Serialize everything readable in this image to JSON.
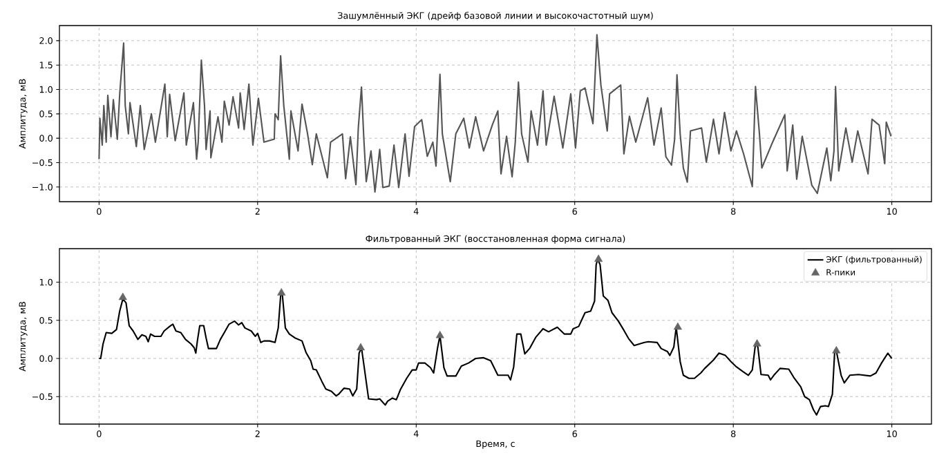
{
  "chart_data": [
    {
      "type": "line",
      "title": "Зашумлённый ЭКГ (дрейф базовой линии и высокочастотный шум)",
      "ylabel": "Амплитуда, мВ",
      "xlim": [
        -0.5,
        10.5
      ],
      "ylim": [
        -1.3,
        2.31
      ],
      "xticks": [
        0,
        2,
        4,
        6,
        8,
        10
      ],
      "yticks": [
        {
          "value": -1.0,
          "label": "−1.0"
        },
        {
          "value": -0.5,
          "label": "−0.5"
        },
        {
          "value": 0.0,
          "label": "0.0"
        },
        {
          "value": 0.5,
          "label": "0.5"
        },
        {
          "value": 1.0,
          "label": "1.0"
        },
        {
          "value": 1.5,
          "label": "1.5"
        },
        {
          "value": 2.0,
          "label": "2.0"
        }
      ],
      "grid": true,
      "line_style": "solid",
      "x": [
        0,
        0.01,
        0.04,
        0.06,
        0.09,
        0.11,
        0.15,
        0.18,
        0.23,
        0.26,
        0.31,
        0.33,
        0.37,
        0.39,
        0.47,
        0.52,
        0.57,
        0.66,
        0.71,
        0.83,
        0.86,
        0.89,
        0.96,
        1.07,
        1.1,
        1.19,
        1.23,
        1.25,
        1.29,
        1.33,
        1.35,
        1.4,
        1.41,
        1.5,
        1.55,
        1.58,
        1.64,
        1.69,
        1.76,
        1.78,
        1.83,
        1.89,
        1.94,
        2.01,
        2.08,
        2.21,
        2.22,
        2.26,
        2.29,
        2.33,
        2.4,
        2.42,
        2.51,
        2.56,
        2.63,
        2.69,
        2.74,
        2.88,
        2.92,
        3.07,
        3.11,
        3.17,
        3.24,
        3.27,
        3.31,
        3.34,
        3.37,
        3.43,
        3.48,
        3.54,
        3.58,
        3.66,
        3.72,
        3.78,
        3.86,
        3.91,
        3.98,
        4.07,
        4.14,
        4.21,
        4.25,
        4.3,
        4.33,
        4.43,
        4.5,
        4.6,
        4.67,
        4.75,
        4.85,
        4.96,
        5.03,
        5.07,
        5.14,
        5.21,
        5.25,
        5.29,
        5.33,
        5.41,
        5.45,
        5.53,
        5.6,
        5.64,
        5.74,
        5.85,
        5.95,
        6.01,
        6.07,
        6.13,
        6.23,
        6.28,
        6.33,
        6.41,
        6.44,
        6.58,
        6.62,
        6.69,
        6.77,
        6.92,
        7.0,
        7.09,
        7.15,
        7.22,
        7.26,
        7.29,
        7.33,
        7.37,
        7.42,
        7.46,
        7.6,
        7.66,
        7.75,
        7.82,
        7.89,
        7.97,
        8.04,
        8.13,
        8.24,
        8.28,
        8.33,
        8.36,
        8.48,
        8.65,
        8.68,
        8.75,
        8.8,
        8.87,
        8.99,
        9.06,
        9.18,
        9.23,
        9.27,
        9.29,
        9.33,
        9.42,
        9.5,
        9.57,
        9.7,
        9.75,
        9.84,
        9.91,
        9.93,
        9.99
      ],
      "series": [
        {
          "color": "#555555",
          "values": [
            -0.43,
            0.41,
            -0.14,
            0.67,
            -0.08,
            0.88,
            0.03,
            0.79,
            -0.02,
            0.9,
            1.95,
            0.67,
            0.09,
            0.73,
            -0.17,
            0.67,
            -0.23,
            0.5,
            -0.08,
            1.11,
            0.03,
            0.9,
            -0.05,
            0.93,
            -0.14,
            0.73,
            -0.43,
            -0.08,
            1.6,
            0.67,
            -0.23,
            0.56,
            -0.4,
            0.44,
            -0.08,
            0.76,
            0.27,
            0.85,
            0.21,
            0.93,
            0.18,
            1.11,
            -0.14,
            0.82,
            -0.08,
            -0.02,
            0.5,
            0.38,
            1.69,
            0.67,
            -0.43,
            0.56,
            -0.26,
            0.7,
            0.09,
            -0.54,
            0.09,
            -0.81,
            -0.08,
            0.09,
            -0.83,
            0.03,
            -0.95,
            0.21,
            1.05,
            -0.02,
            -0.89,
            -0.26,
            -1.1,
            -0.23,
            -1.01,
            -0.98,
            -0.14,
            -1.01,
            0.09,
            -0.78,
            0.24,
            0.38,
            -0.37,
            -0.08,
            -0.57,
            1.31,
            0.09,
            -0.89,
            0.09,
            0.41,
            -0.2,
            0.44,
            -0.26,
            0.27,
            0.56,
            -0.73,
            0.04,
            -0.79,
            -0.08,
            1.15,
            0.09,
            -0.49,
            0.56,
            -0.14,
            0.97,
            -0.14,
            0.86,
            -0.2,
            0.91,
            -0.2,
            0.97,
            1.03,
            0.3,
            2.12,
            1.09,
            0.15,
            0.91,
            1.09,
            -0.32,
            0.45,
            -0.08,
            0.83,
            -0.14,
            0.62,
            -0.38,
            -0.55,
            -0.02,
            1.3,
            0.09,
            -0.61,
            -0.9,
            0.15,
            0.21,
            -0.49,
            0.39,
            -0.32,
            0.53,
            -0.26,
            0.15,
            -0.32,
            -0.99,
            1.06,
            0.09,
            -0.61,
            -0.14,
            0.48,
            -0.67,
            0.27,
            -0.84,
            0.04,
            -0.96,
            -1.13,
            -0.2,
            -0.87,
            -0.26,
            1.06,
            -0.67,
            0.21,
            -0.49,
            0.15,
            -0.73,
            0.39,
            0.27,
            -0.52,
            0.33,
            0.04
          ]
        }
      ]
    },
    {
      "type": "line",
      "title": "Фильтрованный ЭКГ (восстановленная форма сигнала)",
      "ylabel": "Амплитуда, мВ",
      "xlabel": "Время, с",
      "xlim": [
        -0.5,
        10.5
      ],
      "ylim": [
        -0.86,
        1.44
      ],
      "xticks": [
        0,
        2,
        4,
        6,
        8,
        10
      ],
      "yticks": [
        {
          "value": -0.5,
          "label": "−0.5"
        },
        {
          "value": 0.0,
          "label": "0.0"
        },
        {
          "value": 0.5,
          "label": "0.5"
        },
        {
          "value": 1.0,
          "label": "1.0"
        }
      ],
      "grid": true,
      "legend": "top right",
      "line_style": "solid",
      "x": [
        0,
        0.02,
        0.05,
        0.09,
        0.16,
        0.22,
        0.26,
        0.3,
        0.34,
        0.38,
        0.43,
        0.49,
        0.54,
        0.59,
        0.62,
        0.65,
        0.7,
        0.78,
        0.82,
        0.89,
        0.93,
        0.97,
        1.03,
        1.09,
        1.16,
        1.2,
        1.22,
        1.24,
        1.27,
        1.32,
        1.35,
        1.38,
        1.48,
        1.53,
        1.58,
        1.64,
        1.71,
        1.76,
        1.8,
        1.84,
        1.92,
        1.97,
        2.0,
        2.04,
        2.08,
        2.15,
        2.22,
        2.26,
        2.29,
        2.31,
        2.35,
        2.4,
        2.47,
        2.56,
        2.61,
        2.67,
        2.7,
        2.74,
        2.81,
        2.86,
        2.93,
        2.99,
        3.02,
        3.09,
        3.16,
        3.2,
        3.25,
        3.28,
        3.31,
        3.34,
        3.4,
        3.5,
        3.54,
        3.61,
        3.64,
        3.7,
        3.75,
        3.8,
        3.88,
        3.95,
        4.0,
        4.03,
        4.11,
        4.18,
        4.22,
        4.27,
        4.3,
        4.35,
        4.39,
        4.5,
        4.57,
        4.66,
        4.75,
        4.85,
        4.94,
        5.03,
        5.16,
        5.19,
        5.23,
        5.27,
        5.32,
        5.37,
        5.43,
        5.51,
        5.6,
        5.67,
        5.78,
        5.87,
        5.95,
        5.98,
        6.05,
        6.13,
        6.2,
        6.25,
        6.27,
        6.29,
        6.32,
        6.36,
        6.42,
        6.47,
        6.55,
        6.62,
        6.68,
        6.75,
        6.88,
        6.93,
        7.04,
        7.09,
        7.17,
        7.2,
        7.25,
        7.28,
        7.33,
        7.37,
        7.44,
        7.51,
        7.59,
        7.64,
        7.75,
        7.82,
        7.9,
        7.97,
        8.04,
        8.12,
        8.19,
        8.24,
        8.28,
        8.31,
        8.35,
        8.44,
        8.47,
        8.52,
        8.59,
        8.7,
        8.77,
        8.85,
        8.9,
        8.96,
        9.01,
        9.05,
        9.1,
        9.16,
        9.2,
        9.25,
        9.28,
        9.3,
        9.36,
        9.4,
        9.47,
        9.58,
        9.73,
        9.8,
        9.87,
        9.95,
        10.0
      ],
      "series": [
        {
          "name": "ЭКГ (фильтрованный)",
          "color": "#000000",
          "values": [
            0,
            0,
            0.19,
            0.34,
            0.33,
            0.38,
            0.62,
            0.78,
            0.73,
            0.43,
            0.36,
            0.25,
            0.31,
            0.29,
            0.22,
            0.32,
            0.29,
            0.29,
            0.36,
            0.42,
            0.45,
            0.36,
            0.34,
            0.25,
            0.19,
            0.14,
            0.07,
            0.23,
            0.43,
            0.43,
            0.27,
            0.13,
            0.13,
            0.25,
            0.34,
            0.45,
            0.49,
            0.44,
            0.47,
            0.4,
            0.36,
            0.29,
            0.33,
            0.21,
            0.23,
            0.23,
            0.21,
            0.4,
            0.82,
            0.86,
            0.4,
            0.32,
            0.27,
            0.23,
            0.08,
            -0.03,
            -0.14,
            -0.15,
            -0.3,
            -0.4,
            -0.43,
            -0.49,
            -0.47,
            -0.39,
            -0.4,
            -0.49,
            -0.4,
            0.07,
            0.14,
            -0.08,
            -0.53,
            -0.54,
            -0.53,
            -0.61,
            -0.56,
            -0.52,
            -0.54,
            -0.41,
            -0.26,
            -0.15,
            -0.15,
            -0.06,
            -0.06,
            -0.12,
            -0.19,
            0.14,
            0.3,
            -0.12,
            -0.23,
            -0.23,
            -0.1,
            -0.06,
            0.0,
            0.01,
            -0.03,
            -0.22,
            -0.22,
            -0.28,
            -0.11,
            0.32,
            0.32,
            0.06,
            0.13,
            0.28,
            0.39,
            0.35,
            0.41,
            0.32,
            0.32,
            0.39,
            0.42,
            0.6,
            0.62,
            0.75,
            1.23,
            1.3,
            1.23,
            0.82,
            0.76,
            0.6,
            0.49,
            0.37,
            0.26,
            0.17,
            0.21,
            0.22,
            0.21,
            0.13,
            0.09,
            0.04,
            0.15,
            0.41,
            -0.04,
            -0.22,
            -0.26,
            -0.26,
            -0.19,
            -0.13,
            -0.02,
            0.07,
            0.04,
            -0.04,
            -0.11,
            -0.17,
            -0.22,
            -0.15,
            0.19,
            0.15,
            -0.21,
            -0.22,
            -0.28,
            -0.21,
            -0.13,
            -0.14,
            -0.26,
            -0.37,
            -0.5,
            -0.54,
            -0.67,
            -0.74,
            -0.63,
            -0.62,
            -0.63,
            -0.47,
            0.11,
            0.1,
            -0.22,
            -0.32,
            -0.22,
            -0.21,
            -0.23,
            -0.19,
            -0.06,
            0.07,
            0.0
          ]
        },
        {
          "name": "R-пики",
          "type": "scatter",
          "marker": "triangle",
          "color": "#666666",
          "x": [
            0.3,
            2.3,
            3.3,
            4.3,
            6.3,
            7.3,
            8.3,
            9.3
          ],
          "values": [
            0.8,
            0.86,
            0.14,
            0.3,
            1.3,
            0.41,
            0.19,
            0.1
          ]
        }
      ]
    }
  ]
}
